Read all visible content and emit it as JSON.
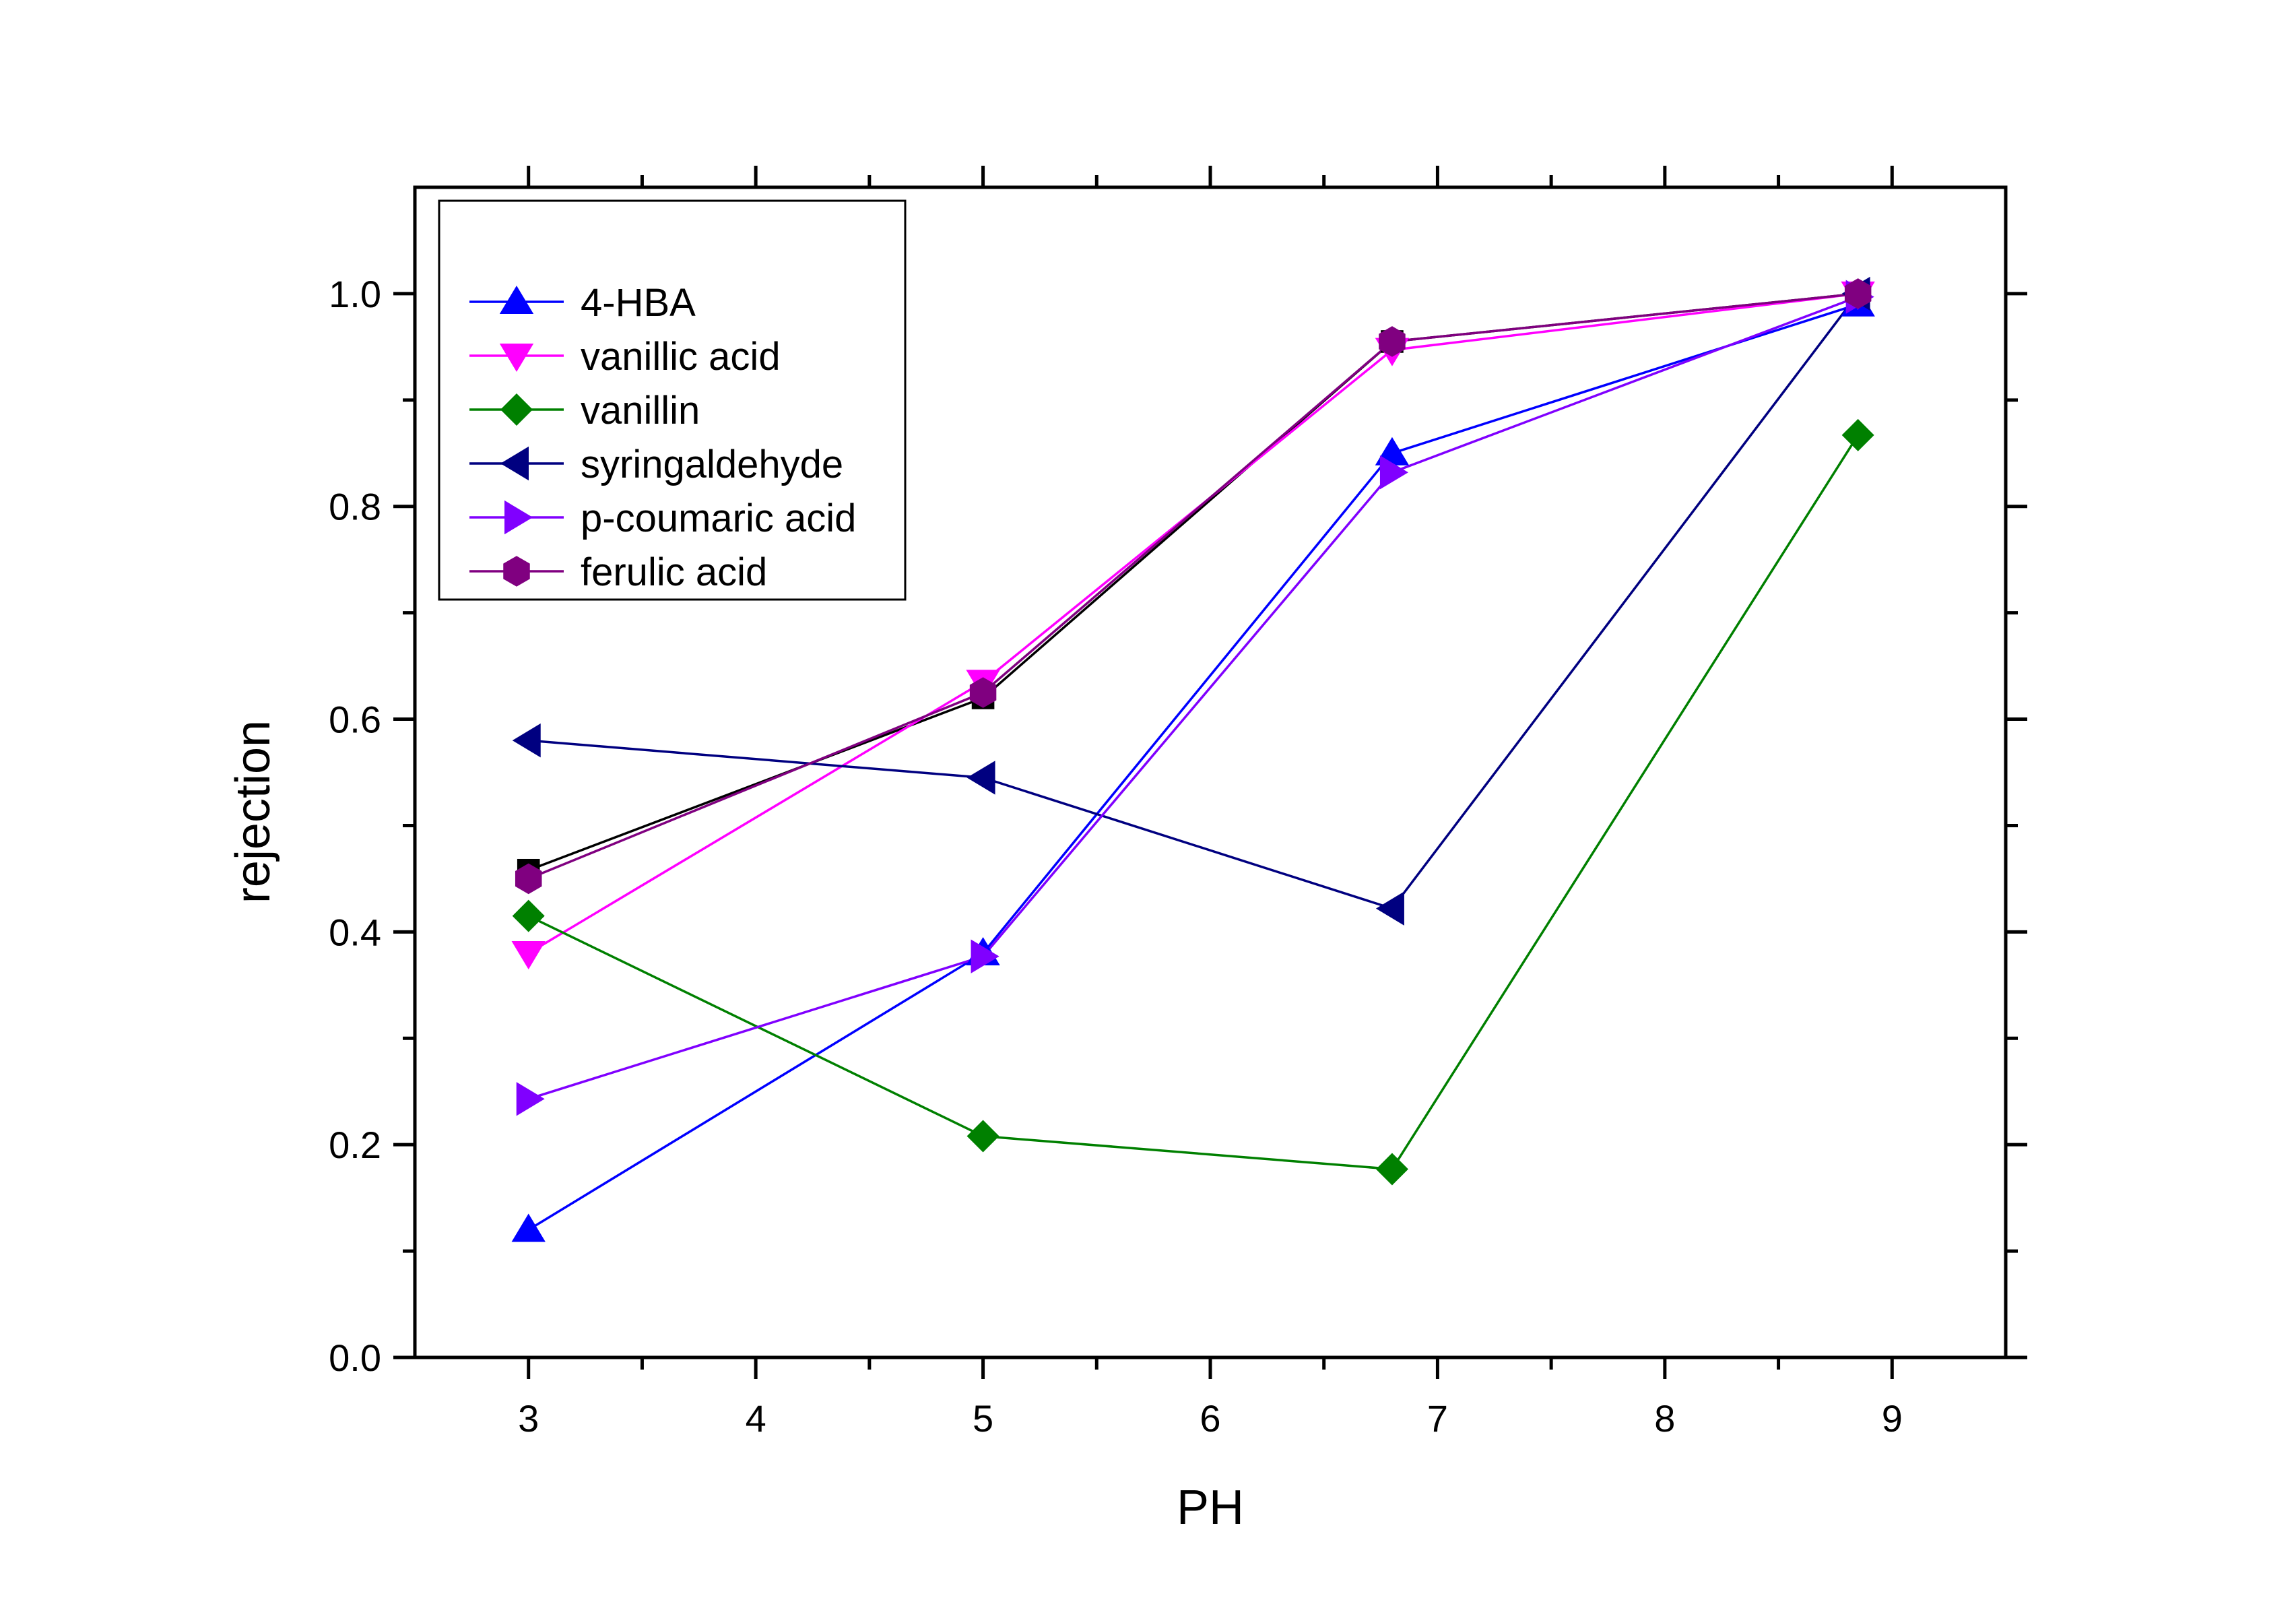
{
  "chart_data": {
    "type": "line",
    "xlabel": "PH",
    "ylabel": "rejection",
    "xlim": [
      2.5,
      9.5
    ],
    "ylim": [
      0.0,
      1.1
    ],
    "xticks": [
      3,
      4,
      5,
      6,
      7,
      8,
      9
    ],
    "yticks": [
      0.0,
      0.2,
      0.4,
      0.6,
      0.8,
      1.0
    ],
    "xtick_labels": [
      "3",
      "4",
      "5",
      "6",
      "7",
      "8",
      "9"
    ],
    "ytick_labels": [
      "0.0",
      "0.2",
      "0.4",
      "0.6",
      "0.8",
      "1.0"
    ],
    "grid": false,
    "legend_position": "top-left",
    "series": [
      {
        "name": "4-HBA",
        "color": "#0000ff",
        "marker": "triangle-up",
        "x": [
          3,
          5,
          6.8,
          8.85
        ],
        "y": [
          0.12,
          0.38,
          0.85,
          0.99
        ]
      },
      {
        "name": "vanillic acid",
        "color": "#ff00ff",
        "marker": "triangle-down",
        "x": [
          3,
          5,
          6.8,
          8.85
        ],
        "y": [
          0.38,
          0.635,
          0.947,
          1.0
        ]
      },
      {
        "name": "vanillin",
        "color": "#008000",
        "marker": "diamond",
        "x": [
          3,
          5,
          6.8,
          8.85
        ],
        "y": [
          0.415,
          0.208,
          0.177,
          0.867
        ]
      },
      {
        "name": "syringaldehyde",
        "color": "#000080",
        "marker": "triangle-left",
        "x": [
          3,
          5,
          6.8,
          8.85
        ],
        "y": [
          0.58,
          0.545,
          0.422,
          1.0
        ]
      },
      {
        "name": "p-coumaric acid",
        "color": "#8000ff",
        "marker": "triangle-right",
        "x": [
          3,
          5,
          6.8,
          8.85
        ],
        "y": [
          0.243,
          0.377,
          0.832,
          0.997
        ]
      },
      {
        "name": "ferulic acid",
        "color": "#800080",
        "marker": "hexagon",
        "x": [
          3,
          5,
          6.8,
          8.85
        ],
        "y": [
          0.45,
          0.625,
          0.955,
          1.0
        ]
      }
    ],
    "unlabeled_series": [
      {
        "color": "#000000",
        "marker": "square",
        "x": [
          3,
          5,
          6.8,
          8.85
        ],
        "y": [
          0.458,
          0.62,
          0.955,
          1.0
        ]
      }
    ]
  }
}
